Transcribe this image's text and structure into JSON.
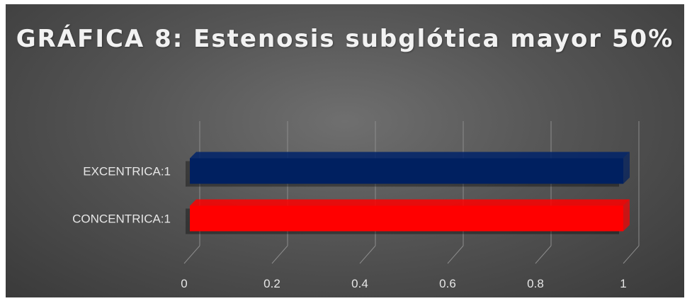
{
  "chart_data": {
    "type": "bar",
    "orientation": "horizontal",
    "title": "GRÁFICA 8: Estenosis subglótica mayor 50%",
    "categories": [
      "CONCENTRICA:1",
      "EXCENTRICA:1"
    ],
    "values": [
      1,
      1
    ],
    "bar_colors": [
      "#ff0000",
      "#002060"
    ],
    "xlim": [
      0,
      1
    ],
    "ticks": [
      "0",
      "0.2",
      "0.4",
      "0.6",
      "0.8",
      "1"
    ],
    "tick_values": [
      0,
      0.2,
      0.4,
      0.6,
      0.8,
      1
    ],
    "grid": true,
    "legend": "none",
    "background": "#555555"
  }
}
